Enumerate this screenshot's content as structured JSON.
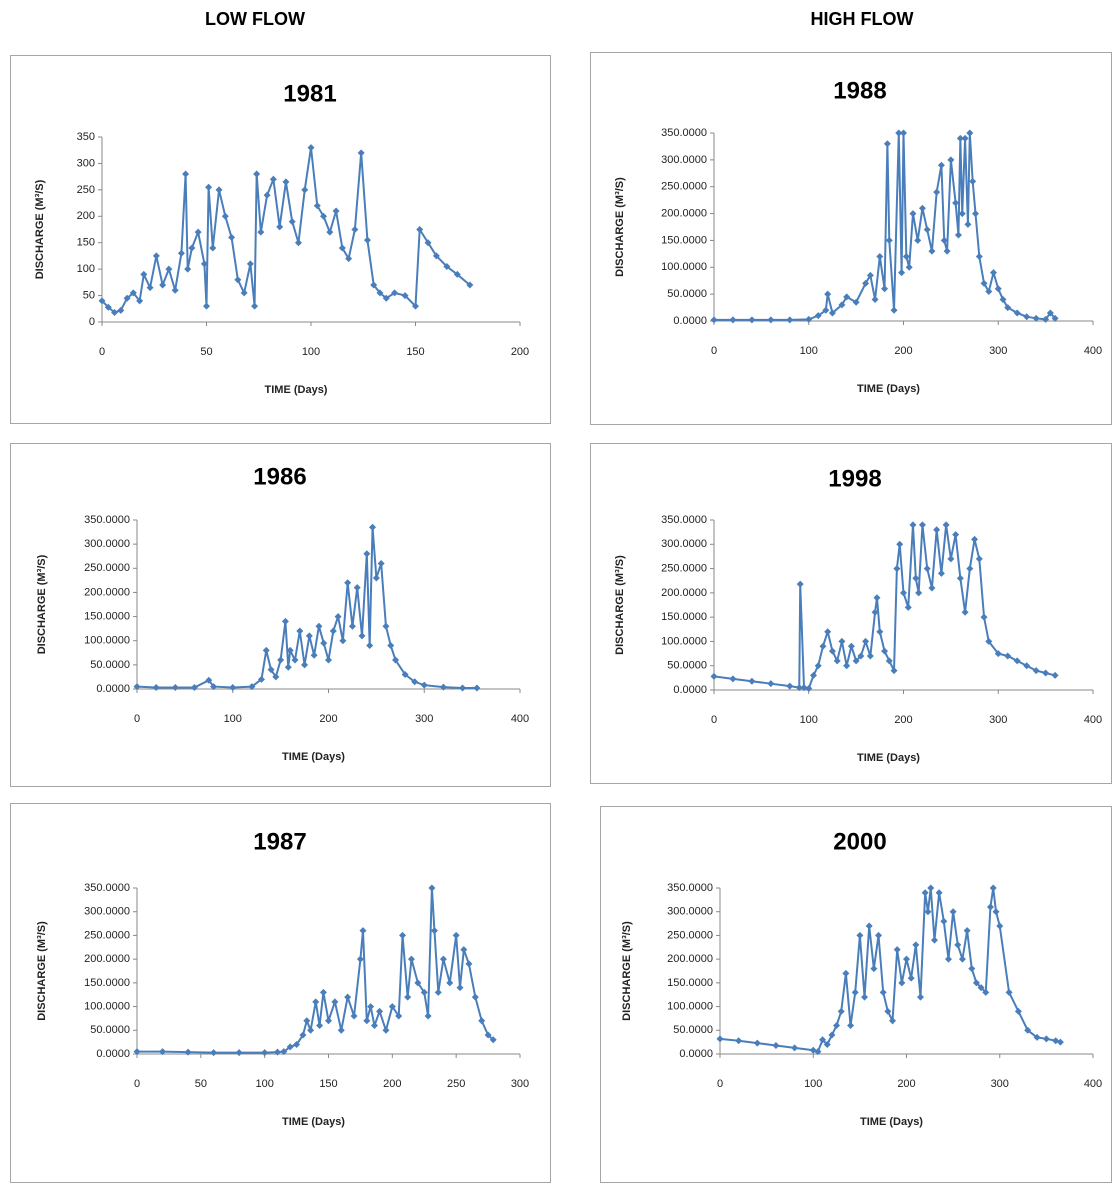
{
  "headers": [
    "LOW FLOW",
    "HIGH FLOW"
  ],
  "chart_data": [
    {
      "type": "line",
      "title": "1981",
      "x_label": "TIME (Days)",
      "y_label": "DISCHARGE (M³/S)",
      "x": [
        0,
        3,
        6,
        9,
        12,
        15,
        18,
        20,
        23,
        26,
        29,
        32,
        35,
        38,
        40,
        41,
        43,
        46,
        49,
        50,
        51,
        53,
        56,
        59,
        62,
        65,
        68,
        71,
        73,
        74,
        76,
        79,
        82,
        85,
        88,
        91,
        94,
        97,
        100,
        103,
        106,
        109,
        112,
        115,
        118,
        121,
        124,
        127,
        130,
        133,
        136,
        140,
        145,
        150,
        152,
        156,
        160,
        165,
        170,
        176
      ],
      "series": [
        {
          "color": "#4a7ebb",
          "values": [
            40,
            28,
            18,
            22,
            45,
            55,
            40,
            90,
            65,
            125,
            70,
            100,
            60,
            130,
            280,
            100,
            140,
            170,
            110,
            30,
            255,
            140,
            250,
            200,
            160,
            80,
            55,
            110,
            30,
            280,
            170,
            240,
            270,
            180,
            265,
            190,
            150,
            250,
            330,
            220,
            200,
            170,
            210,
            140,
            120,
            175,
            320,
            155,
            70,
            55,
            45,
            55,
            50,
            30,
            175,
            150,
            125,
            105,
            90,
            70
          ]
        }
      ],
      "xlim": [
        0,
        200
      ],
      "xticks": [
        0,
        50,
        100,
        150,
        200
      ],
      "ylim": [
        0,
        350
      ],
      "yticks": [
        0,
        50,
        100,
        150,
        200,
        250,
        300,
        350
      ]
    },
    {
      "type": "line",
      "title": "1988",
      "x_label": "TIME (Days)",
      "y_label": "DISCHARGE (M³/S)",
      "x": [
        0,
        20,
        40,
        60,
        80,
        100,
        110,
        118,
        120,
        125,
        135,
        140,
        150,
        160,
        165,
        170,
        175,
        180,
        183,
        185,
        190,
        195,
        198,
        200,
        203,
        206,
        210,
        215,
        220,
        225,
        230,
        235,
        240,
        243,
        246,
        250,
        255,
        258,
        260,
        262,
        265,
        268,
        270,
        273,
        276,
        280,
        285,
        290,
        295,
        300,
        305,
        310,
        320,
        330,
        340,
        350,
        355,
        360
      ],
      "series": [
        {
          "color": "#4a7ebb",
          "values": [
            2,
            2,
            2,
            2,
            2,
            3,
            10,
            20,
            50,
            15,
            30,
            45,
            35,
            70,
            85,
            40,
            120,
            60,
            330,
            150,
            20,
            350,
            90,
            350,
            120,
            100,
            200,
            150,
            210,
            170,
            130,
            240,
            290,
            150,
            130,
            300,
            220,
            160,
            340,
            200,
            340,
            180,
            350,
            260,
            200,
            120,
            70,
            55,
            90,
            60,
            40,
            25,
            15,
            8,
            5,
            3,
            15,
            5
          ]
        }
      ],
      "xlim": [
        0,
        400
      ],
      "xticks": [
        0,
        100,
        200,
        300,
        400
      ],
      "ylim": [
        0,
        350
      ],
      "yticks": [
        {
          "value": 0,
          "label": "0.0000"
        },
        {
          "value": 50,
          "label": "50.0000"
        },
        {
          "value": 100,
          "label": "100.0000"
        },
        {
          "value": 150,
          "label": "150.0000"
        },
        {
          "value": 200,
          "label": "200.0000"
        },
        {
          "value": 250,
          "label": "250.0000"
        },
        {
          "value": 300,
          "label": "300.0000"
        },
        {
          "value": 350,
          "label": "350.0000"
        }
      ]
    },
    {
      "type": "line",
      "title": "1986",
      "x_label": "TIME (Days)",
      "y_label": "DISCHARGE (M³/S)",
      "x": [
        0,
        20,
        40,
        60,
        75,
        80,
        100,
        120,
        130,
        135,
        140,
        145,
        150,
        155,
        158,
        160,
        165,
        170,
        175,
        180,
        185,
        190,
        195,
        200,
        205,
        210,
        215,
        220,
        225,
        230,
        235,
        240,
        243,
        246,
        250,
        255,
        260,
        265,
        270,
        280,
        290,
        300,
        320,
        340,
        355
      ],
      "series": [
        {
          "color": "#4a7ebb",
          "values": [
            5,
            3,
            3,
            3,
            18,
            5,
            3,
            5,
            20,
            80,
            40,
            25,
            60,
            140,
            45,
            80,
            60,
            120,
            50,
            110,
            70,
            130,
            95,
            60,
            120,
            150,
            100,
            220,
            130,
            210,
            110,
            280,
            90,
            335,
            230,
            260,
            130,
            90,
            60,
            30,
            15,
            8,
            4,
            2,
            2
          ]
        }
      ],
      "xlim": [
        0,
        400
      ],
      "xticks": [
        0,
        100,
        200,
        300,
        400
      ],
      "ylim": [
        0,
        350
      ],
      "yticks": [
        {
          "value": 0,
          "label": "0.0000"
        },
        {
          "value": 50,
          "label": "50.0000"
        },
        {
          "value": 100,
          "label": "100.0000"
        },
        {
          "value": 150,
          "label": "150.0000"
        },
        {
          "value": 200,
          "label": "200.0000"
        },
        {
          "value": 250,
          "label": "250.0000"
        },
        {
          "value": 300,
          "label": "300.0000"
        },
        {
          "value": 350,
          "label": "350.0000"
        }
      ]
    },
    {
      "type": "line",
      "title": "1998",
      "x_label": "TIME (Days)",
      "y_label": "DISCHARGE (M³/S)",
      "x": [
        0,
        20,
        40,
        60,
        80,
        90,
        91,
        95,
        100,
        105,
        110,
        115,
        120,
        125,
        130,
        135,
        140,
        145,
        150,
        155,
        160,
        165,
        170,
        172,
        175,
        180,
        185,
        190,
        193,
        196,
        200,
        205,
        210,
        213,
        216,
        220,
        225,
        230,
        235,
        240,
        245,
        250,
        255,
        260,
        265,
        270,
        275,
        280,
        285,
        290,
        300,
        310,
        320,
        330,
        340,
        350,
        360
      ],
      "series": [
        {
          "color": "#4a7ebb",
          "values": [
            28,
            23,
            18,
            13,
            8,
            5,
            218,
            5,
            3,
            30,
            50,
            90,
            120,
            80,
            60,
            100,
            50,
            90,
            60,
            70,
            100,
            70,
            160,
            190,
            120,
            80,
            60,
            40,
            250,
            300,
            200,
            170,
            340,
            230,
            200,
            340,
            250,
            210,
            330,
            240,
            340,
            270,
            320,
            230,
            160,
            250,
            310,
            270,
            150,
            100,
            75,
            70,
            60,
            50,
            40,
            35,
            30
          ]
        }
      ],
      "xlim": [
        0,
        400
      ],
      "xticks": [
        0,
        100,
        200,
        300,
        400
      ],
      "ylim": [
        0,
        350
      ],
      "yticks": [
        {
          "value": 0,
          "label": "0.0000"
        },
        {
          "value": 50,
          "label": "50.0000"
        },
        {
          "value": 100,
          "label": "100.0000"
        },
        {
          "value": 150,
          "label": "150.0000"
        },
        {
          "value": 200,
          "label": "200.0000"
        },
        {
          "value": 250,
          "label": "250.0000"
        },
        {
          "value": 300,
          "label": "300.0000"
        },
        {
          "value": 350,
          "label": "350.0000"
        }
      ]
    },
    {
      "type": "line",
      "title": "1987",
      "x_label": "TIME (Days)",
      "y_label": "DISCHARGE (M³/S)",
      "x": [
        0,
        20,
        40,
        60,
        80,
        100,
        110,
        115,
        120,
        125,
        130,
        133,
        136,
        140,
        143,
        146,
        150,
        155,
        160,
        165,
        170,
        175,
        177,
        180,
        183,
        186,
        190,
        195,
        200,
        205,
        208,
        212,
        215,
        220,
        225,
        228,
        231,
        233,
        236,
        240,
        245,
        250,
        253,
        256,
        260,
        265,
        270,
        275,
        279
      ],
      "series": [
        {
          "color": "#4a7ebb",
          "values": [
            5,
            5,
            4,
            3,
            3,
            3,
            4,
            5,
            15,
            20,
            40,
            70,
            50,
            110,
            60,
            130,
            70,
            110,
            50,
            120,
            80,
            200,
            260,
            70,
            100,
            60,
            90,
            50,
            100,
            80,
            250,
            120,
            200,
            150,
            130,
            80,
            350,
            260,
            130,
            200,
            150,
            250,
            140,
            220,
            190,
            120,
            70,
            40,
            30
          ]
        }
      ],
      "xlim": [
        0,
        300
      ],
      "xticks": [
        0,
        50,
        100,
        150,
        200,
        250,
        300
      ],
      "ylim": [
        0,
        350
      ],
      "yticks": [
        {
          "value": 0,
          "label": "0.0000"
        },
        {
          "value": 50,
          "label": "50.0000"
        },
        {
          "value": 100,
          "label": "100.0000"
        },
        {
          "value": 150,
          "label": "150.0000"
        },
        {
          "value": 200,
          "label": "200.0000"
        },
        {
          "value": 250,
          "label": "250.0000"
        },
        {
          "value": 300,
          "label": "300.0000"
        },
        {
          "value": 350,
          "label": "350.0000"
        }
      ]
    },
    {
      "type": "line",
      "title": "2000",
      "x_label": "TIME (Days)",
      "y_label": "DISCHARGE (M³/S)",
      "x": [
        0,
        20,
        40,
        60,
        80,
        100,
        105,
        110,
        115,
        120,
        125,
        130,
        135,
        140,
        145,
        150,
        155,
        160,
        165,
        170,
        175,
        180,
        185,
        190,
        195,
        200,
        205,
        210,
        215,
        220,
        223,
        226,
        230,
        235,
        240,
        245,
        250,
        255,
        260,
        265,
        270,
        275,
        280,
        285,
        290,
        293,
        296,
        300,
        310,
        320,
        330,
        340,
        350,
        360,
        365
      ],
      "series": [
        {
          "color": "#4a7ebb",
          "values": [
            32,
            28,
            23,
            18,
            13,
            8,
            5,
            30,
            20,
            40,
            60,
            90,
            170,
            60,
            130,
            250,
            120,
            270,
            180,
            250,
            130,
            90,
            70,
            220,
            150,
            200,
            160,
            230,
            120,
            340,
            300,
            350,
            240,
            340,
            280,
            200,
            300,
            230,
            200,
            260,
            180,
            150,
            140,
            130,
            310,
            350,
            300,
            270,
            130,
            90,
            50,
            35,
            32,
            28,
            25
          ]
        }
      ],
      "xlim": [
        0,
        400
      ],
      "xticks": [
        0,
        100,
        200,
        300,
        400
      ],
      "ylim": [
        0,
        350
      ],
      "yticks": [
        {
          "value": 0,
          "label": "0.0000"
        },
        {
          "value": 50,
          "label": "50.0000"
        },
        {
          "value": 100,
          "label": "100.0000"
        },
        {
          "value": 150,
          "label": "150.0000"
        },
        {
          "value": 200,
          "label": "200.0000"
        },
        {
          "value": 250,
          "label": "250.0000"
        },
        {
          "value": 300,
          "label": "300.0000"
        },
        {
          "value": 350,
          "label": "350.0000"
        }
      ]
    }
  ]
}
